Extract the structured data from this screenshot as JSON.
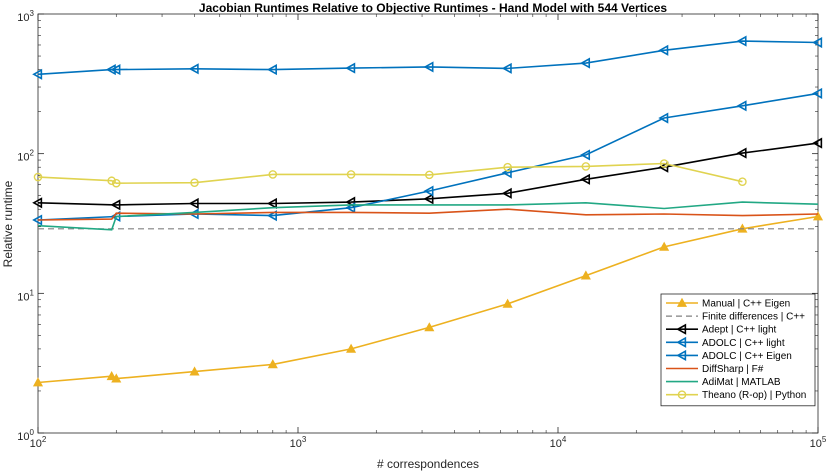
{
  "chart_data": {
    "type": "line",
    "title": "Jacobian Runtimes Relative to Objective Runtimes - Hand Model with 544 Vertices",
    "xlabel": "# correspondences",
    "ylabel": "Relative runtime",
    "xscale": "log",
    "yscale": "log",
    "xlim": [
      100,
      100000
    ],
    "ylim": [
      1,
      1000
    ],
    "xticks": [
      {
        "value": 100,
        "base": "10",
        "exp": "2"
      },
      {
        "value": 1000,
        "base": "10",
        "exp": "3"
      },
      {
        "value": 10000,
        "base": "10",
        "exp": "4"
      },
      {
        "value": 100000,
        "base": "10",
        "exp": "5"
      }
    ],
    "yticks": [
      {
        "value": 1,
        "base": "10",
        "exp": "0"
      },
      {
        "value": 10,
        "base": "10",
        "exp": "1"
      },
      {
        "value": 100,
        "base": "10",
        "exp": "2"
      },
      {
        "value": 1000,
        "base": "10",
        "exp": "3"
      }
    ],
    "grid": false,
    "legend_position": "bottom-right",
    "series": [
      {
        "name": "Manual | C++ Eigen",
        "color": "#EDB120",
        "marker": "triangle-up",
        "dash": false,
        "x": [
          100,
          192,
          200,
          400,
          800,
          1600,
          3200,
          6400,
          12800,
          25600,
          51200,
          100000
        ],
        "y": [
          2.3,
          2.55,
          2.45,
          2.75,
          3.1,
          4.0,
          5.7,
          8.4,
          13.4,
          21.5,
          29.0,
          35.5
        ]
      },
      {
        "name": "Finite differences | C++",
        "color": "#808080",
        "marker": "none",
        "dash": true,
        "x": [
          100,
          100000
        ],
        "y": [
          29.0,
          29.0
        ]
      },
      {
        "name": "Adept | C++ light",
        "color": "#000000",
        "marker": "triangle-left",
        "dash": false,
        "x": [
          100,
          200,
          400,
          800,
          1600,
          3200,
          6400,
          12800,
          25600,
          51200,
          100000
        ],
        "y": [
          44.5,
          43.0,
          44.0,
          44.0,
          45.0,
          47.5,
          52.0,
          65.5,
          80.0,
          101.0,
          119.0
        ]
      },
      {
        "name": "ADOLC | C++ light",
        "color": "#0072BD",
        "marker": "triangle-left",
        "dash": false,
        "x": [
          100,
          192,
          200,
          400,
          800,
          1600,
          3200,
          6400,
          12800,
          25600,
          51200,
          100000
        ],
        "y": [
          370,
          400,
          400,
          405,
          400,
          410,
          418,
          408,
          445,
          550,
          640,
          625
        ]
      },
      {
        "name": "ADOLC | C++ Eigen",
        "color": "#0072BD",
        "marker": "triangle-left",
        "dash": false,
        "x": [
          100,
          200,
          400,
          800,
          1600,
          3200,
          6400,
          12800,
          25600,
          51200,
          100000
        ],
        "y": [
          33.5,
          35.5,
          37.0,
          36.0,
          41.0,
          54.0,
          73.0,
          98.0,
          180.0,
          220.0,
          270.0
        ]
      },
      {
        "name": "DiffSharp | F#",
        "color": "#D95319",
        "marker": "none",
        "dash": false,
        "x": [
          100,
          192,
          200,
          400,
          800,
          1600,
          3200,
          6400,
          12800,
          25600,
          51200,
          100000
        ],
        "y": [
          33.5,
          34.0,
          37.5,
          37.0,
          38.0,
          38.0,
          37.5,
          40.0,
          36.5,
          37.0,
          36.0,
          37.0
        ]
      },
      {
        "name": "AdiMat | MATLAB",
        "color": "#22A884",
        "marker": "none",
        "dash": false,
        "x": [
          100,
          192,
          200,
          400,
          800,
          1600,
          3200,
          6400,
          12800,
          25600,
          51200,
          100000
        ],
        "y": [
          30.5,
          28.5,
          35.5,
          38.0,
          41.0,
          43.0,
          43.0,
          43.0,
          44.5,
          40.5,
          45.0,
          43.5
        ]
      },
      {
        "name": "Theano (R-op) | Python",
        "color": "#E0D350",
        "marker": "circle",
        "dash": false,
        "x": [
          100,
          192,
          200,
          400,
          800,
          1600,
          3200,
          6400,
          12800,
          25600,
          51200
        ],
        "y": [
          68.0,
          64.0,
          61.5,
          62.0,
          71.0,
          71.0,
          70.5,
          80.0,
          81.0,
          85.0,
          63.0
        ]
      }
    ]
  }
}
